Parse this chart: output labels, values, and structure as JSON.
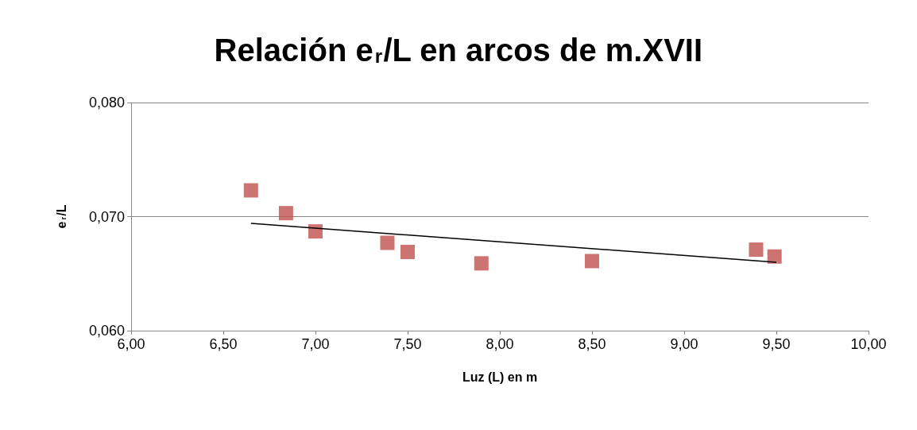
{
  "chart_data": {
    "type": "scatter",
    "title": "Relación e$_{r}$/L en arcos de m.XVII",
    "xlabel": "Luz (L) en m",
    "ylabel": "e$_{r}$/L",
    "x": [
      6.65,
      6.84,
      7.0,
      7.39,
      7.5,
      7.9,
      8.5,
      9.39,
      9.49
    ],
    "series": [
      {
        "color": "#c0504d",
        "values": [
          0.0723,
          0.0703,
          0.0687,
          0.0677,
          0.0669,
          0.0659,
          0.0661,
          0.0671,
          0.0665
        ]
      },
      {
        "type": "line",
        "color": "#000000",
        "x": [
          6.65,
          9.5
        ],
        "values": [
          0.0694,
          0.066
        ],
        "marker": "none"
      }
    ],
    "xlim": [
      6,
      10
    ],
    "xticks": [
      {
        "value": 6,
        "label": "6,00"
      },
      {
        "value": 6.5,
        "label": "6,50"
      },
      {
        "value": 7,
        "label": "7,00"
      },
      {
        "value": 7.5,
        "label": "7,50"
      },
      {
        "value": 8,
        "label": "8,00"
      },
      {
        "value": 8.5,
        "label": "8,50"
      },
      {
        "value": 9,
        "label": "9,00"
      },
      {
        "value": 9.5,
        "label": "9,50"
      },
      {
        "value": 10,
        "label": "10,00"
      }
    ],
    "ylim": [
      0.06,
      0.08
    ],
    "yticks": [
      {
        "value": 0.06,
        "label": "0,060"
      },
      {
        "value": 0.07,
        "label": "0,070"
      },
      {
        "value": 0.08,
        "label": "0,080"
      }
    ],
    "grid": "y",
    "marker": "square"
  }
}
